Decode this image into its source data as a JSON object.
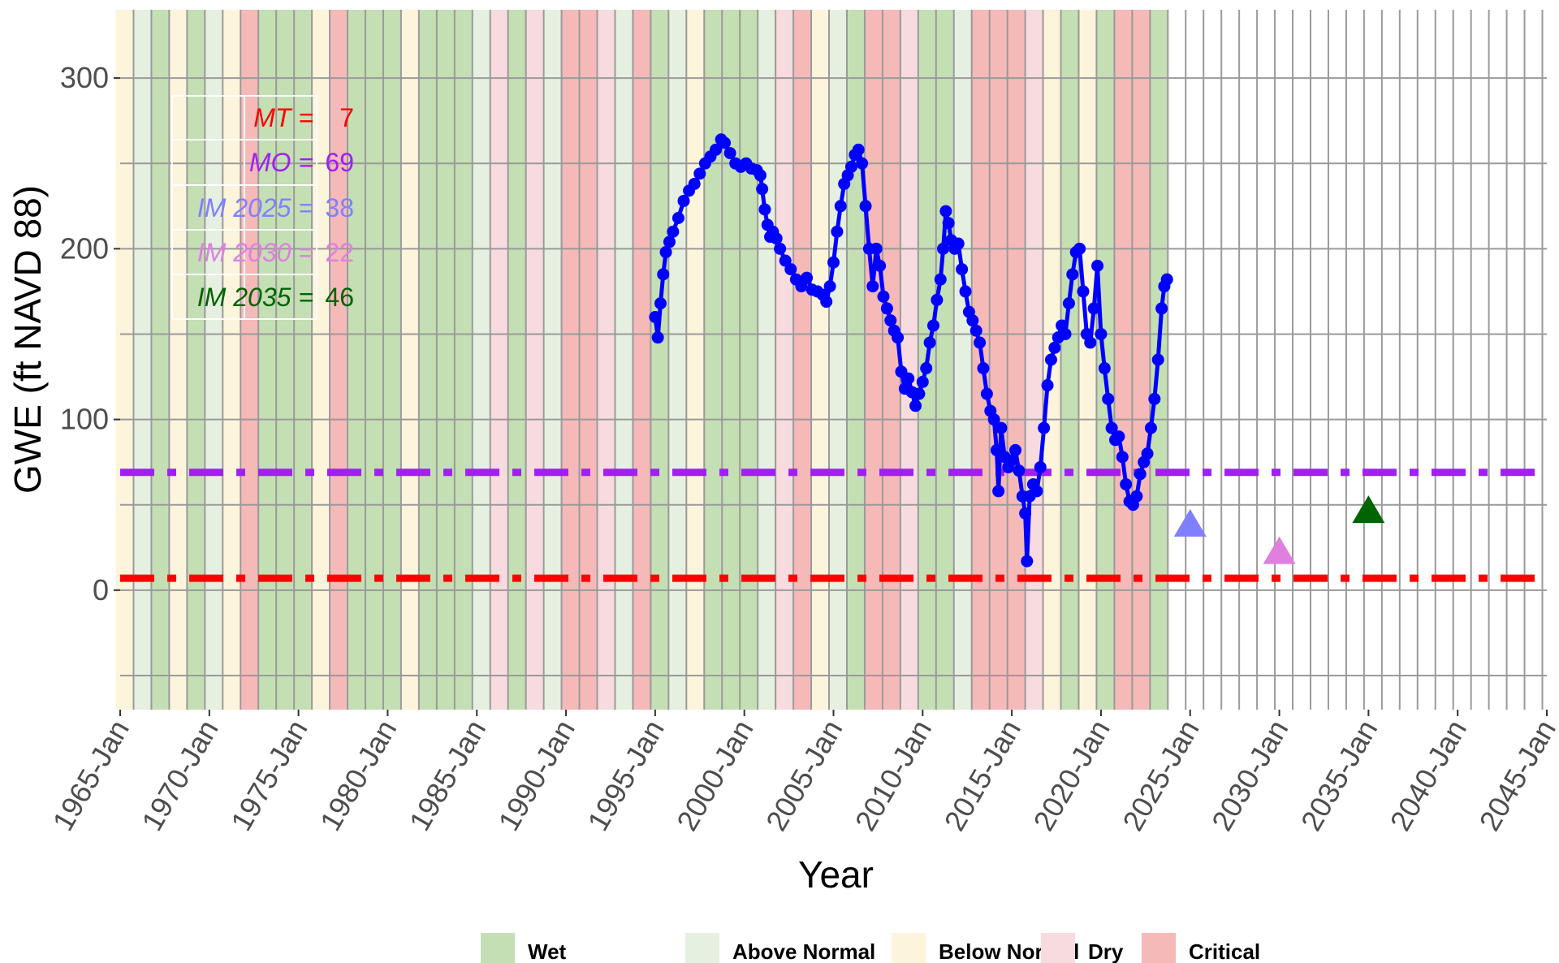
{
  "chart_data": {
    "type": "line",
    "xlabel": "Year",
    "ylabel": "GWE (ft NAVD 88)",
    "xlim": [
      1965,
      2045
    ],
    "ylim": [
      -70,
      340
    ],
    "x_ticks": [
      1965,
      1970,
      1975,
      1980,
      1985,
      1990,
      1995,
      2000,
      2005,
      2010,
      2015,
      2020,
      2025,
      2030,
      2035,
      2040,
      2045
    ],
    "x_tick_labels": [
      "1965-Jan",
      "1970-Jan",
      "1975-Jan",
      "1980-Jan",
      "1985-Jan",
      "1990-Jan",
      "1995-Jan",
      "2000-Jan",
      "2005-Jan",
      "2010-Jan",
      "2015-Jan",
      "2020-Jan",
      "2025-Jan",
      "2030-Jan",
      "2035-Jan",
      "2040-Jan",
      "2045-Jan"
    ],
    "y_ticks": [
      0,
      100,
      200,
      300
    ],
    "y_tick_labels": [
      "0",
      "100",
      "200",
      "300"
    ],
    "grid": true,
    "legend_position": "bottom",
    "water_year_types": {
      "colors": {
        "Wet": "#c5dfb4",
        "Above Normal": "#e6f0e1",
        "Below Normal": "#fdf4dc",
        "Dry": "#f7dbdf",
        "Critical": "#f5b9b8"
      },
      "legend_order": [
        "Wet",
        "Above Normal",
        "Below Normal",
        "Dry",
        "Critical"
      ],
      "start_year": 1964.75,
      "end_year": 2023.75,
      "sequence": [
        "Below Normal",
        "Above Normal",
        "Wet",
        "Below Normal",
        "Wet",
        "Above Normal",
        "Below Normal",
        "Critical",
        "Wet",
        "Wet",
        "Wet",
        "Below Normal",
        "Critical",
        "Wet",
        "Wet",
        "Wet",
        "Below Normal",
        "Wet",
        "Wet",
        "Wet",
        "Above Normal",
        "Dry",
        "Wet",
        "Dry",
        "Above Normal",
        "Critical",
        "Critical",
        "Dry",
        "Above Normal",
        "Critical",
        "Wet",
        "Above Normal",
        "Below Normal",
        "Wet",
        "Wet",
        "Wet",
        "Above Normal",
        "Dry",
        "Critical",
        "Below Normal",
        "Above Normal",
        "Wet",
        "Critical",
        "Critical",
        "Dry",
        "Wet",
        "Wet",
        "Above Normal",
        "Critical",
        "Critical",
        "Critical",
        "Dry",
        "Below Normal",
        "Wet",
        "Below Normal",
        "Wet",
        "Critical",
        "Critical",
        "Wet"
      ]
    },
    "series": [
      {
        "name": "GWE",
        "color": "#0000ff",
        "points": [
          [
            1995.0,
            160
          ],
          [
            1995.15,
            148
          ],
          [
            1995.3,
            168
          ],
          [
            1995.45,
            185
          ],
          [
            1995.6,
            198
          ],
          [
            1995.8,
            204
          ],
          [
            1996.0,
            210
          ],
          [
            1996.3,
            218
          ],
          [
            1996.6,
            228
          ],
          [
            1996.9,
            234
          ],
          [
            1997.2,
            238
          ],
          [
            1997.5,
            244
          ],
          [
            1997.8,
            250
          ],
          [
            1998.1,
            254
          ],
          [
            1998.4,
            258
          ],
          [
            1998.7,
            264
          ],
          [
            1998.9,
            262
          ],
          [
            1999.2,
            256
          ],
          [
            1999.5,
            250
          ],
          [
            1999.8,
            248
          ],
          [
            2000.1,
            250
          ],
          [
            2000.4,
            247
          ],
          [
            2000.7,
            246
          ],
          [
            2000.9,
            243
          ],
          [
            2001.0,
            235
          ],
          [
            2001.15,
            223
          ],
          [
            2001.3,
            214
          ],
          [
            2001.45,
            207
          ],
          [
            2001.6,
            210
          ],
          [
            2001.8,
            206
          ],
          [
            2002.0,
            200
          ],
          [
            2002.3,
            193
          ],
          [
            2002.6,
            188
          ],
          [
            2002.9,
            182
          ],
          [
            2003.2,
            178
          ],
          [
            2003.5,
            183
          ],
          [
            2003.8,
            176
          ],
          [
            2004.1,
            175
          ],
          [
            2004.4,
            173
          ],
          [
            2004.6,
            169
          ],
          [
            2004.8,
            178
          ],
          [
            2005.0,
            192
          ],
          [
            2005.2,
            210
          ],
          [
            2005.4,
            225
          ],
          [
            2005.6,
            238
          ],
          [
            2005.8,
            243
          ],
          [
            2006.0,
            248
          ],
          [
            2006.2,
            255
          ],
          [
            2006.4,
            258
          ],
          [
            2006.6,
            250
          ],
          [
            2006.8,
            225
          ],
          [
            2007.0,
            200
          ],
          [
            2007.2,
            178
          ],
          [
            2007.4,
            200
          ],
          [
            2007.6,
            190
          ],
          [
            2007.8,
            172
          ],
          [
            2008.0,
            165
          ],
          [
            2008.2,
            158
          ],
          [
            2008.4,
            152
          ],
          [
            2008.6,
            148
          ],
          [
            2008.8,
            128
          ],
          [
            2009.0,
            118
          ],
          [
            2009.2,
            124
          ],
          [
            2009.4,
            116
          ],
          [
            2009.6,
            108
          ],
          [
            2009.8,
            115
          ],
          [
            2010.0,
            122
          ],
          [
            2010.2,
            130
          ],
          [
            2010.4,
            145
          ],
          [
            2010.6,
            155
          ],
          [
            2010.8,
            170
          ],
          [
            2011.0,
            182
          ],
          [
            2011.15,
            200
          ],
          [
            2011.3,
            222
          ],
          [
            2011.45,
            215
          ],
          [
            2011.6,
            205
          ],
          [
            2011.8,
            200
          ],
          [
            2012.0,
            203
          ],
          [
            2012.2,
            188
          ],
          [
            2012.4,
            175
          ],
          [
            2012.6,
            163
          ],
          [
            2012.8,
            158
          ],
          [
            2013.0,
            152
          ],
          [
            2013.2,
            145
          ],
          [
            2013.4,
            130
          ],
          [
            2013.6,
            115
          ],
          [
            2013.8,
            105
          ],
          [
            2014.0,
            100
          ],
          [
            2014.15,
            82
          ],
          [
            2014.25,
            58
          ],
          [
            2014.4,
            95
          ],
          [
            2014.6,
            78
          ],
          [
            2014.8,
            72
          ],
          [
            2015.0,
            76
          ],
          [
            2015.2,
            82
          ],
          [
            2015.4,
            70
          ],
          [
            2015.6,
            55
          ],
          [
            2015.75,
            45
          ],
          [
            2015.85,
            17
          ],
          [
            2016.0,
            55
          ],
          [
            2016.2,
            62
          ],
          [
            2016.4,
            58
          ],
          [
            2016.6,
            72
          ],
          [
            2016.8,
            95
          ],
          [
            2017.0,
            120
          ],
          [
            2017.2,
            135
          ],
          [
            2017.4,
            142
          ],
          [
            2017.6,
            148
          ],
          [
            2017.8,
            155
          ],
          [
            2018.0,
            150
          ],
          [
            2018.2,
            168
          ],
          [
            2018.4,
            185
          ],
          [
            2018.6,
            198
          ],
          [
            2018.8,
            200
          ],
          [
            2019.0,
            175
          ],
          [
            2019.2,
            150
          ],
          [
            2019.4,
            145
          ],
          [
            2019.6,
            165
          ],
          [
            2019.8,
            190
          ],
          [
            2020.0,
            150
          ],
          [
            2020.2,
            130
          ],
          [
            2020.4,
            112
          ],
          [
            2020.6,
            95
          ],
          [
            2020.8,
            88
          ],
          [
            2021.0,
            90
          ],
          [
            2021.2,
            78
          ],
          [
            2021.4,
            62
          ],
          [
            2021.6,
            52
          ],
          [
            2021.8,
            50
          ],
          [
            2022.0,
            55
          ],
          [
            2022.2,
            68
          ],
          [
            2022.4,
            75
          ],
          [
            2022.6,
            80
          ],
          [
            2022.8,
            95
          ],
          [
            2023.0,
            112
          ],
          [
            2023.2,
            135
          ],
          [
            2023.4,
            165
          ],
          [
            2023.55,
            178
          ],
          [
            2023.7,
            182
          ]
        ]
      }
    ],
    "thresholds": [
      {
        "label": "MT =",
        "value": 7,
        "color": "#ff0000",
        "line_style": "dash-dot"
      },
      {
        "label": "MO =",
        "value": 69,
        "color": "#a020f0",
        "line_style": "dash-dot"
      }
    ],
    "interim_milestones": [
      {
        "label": "IM 2025 =",
        "x": 2025,
        "value": 38,
        "color": "#8080ff"
      },
      {
        "label": "IM 2030 =",
        "x": 2030,
        "value": 22,
        "color": "#e07fe0"
      },
      {
        "label": "IM 2035 =",
        "x": 2035,
        "value": 46,
        "color": "#006400"
      }
    ]
  }
}
